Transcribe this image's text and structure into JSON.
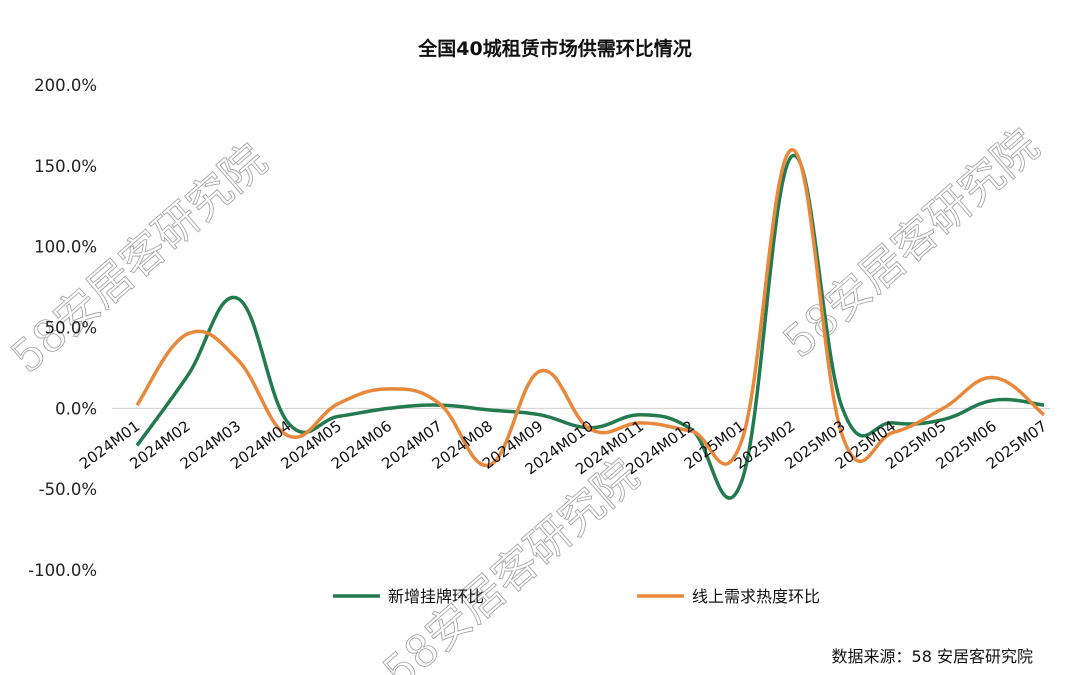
{
  "chart_data": {
    "type": "line",
    "title": "全国40城租赁市场供需环比情况",
    "categories": [
      "2024M01",
      "2024M02",
      "2024M03",
      "2024M04",
      "2024M05",
      "2024M06",
      "2024M07",
      "2024M08",
      "2024M09",
      "2024M010",
      "2024M011",
      "2024M012",
      "2025M01",
      "2025M02",
      "2025M03",
      "2025M04",
      "2025M05",
      "2025M06",
      "2025M07"
    ],
    "y_ticks": [
      "200.0%",
      "150.0%",
      "100.0%",
      "50.0%",
      "0.0%",
      "-50.0%",
      "-100.0%"
    ],
    "ylim": [
      -100,
      200
    ],
    "y_unit": "%",
    "grid": false,
    "legend_position": "bottom",
    "series": [
      {
        "name": "新增挂牌环比",
        "color": "#237a4f",
        "values": [
          -23,
          20,
          68,
          -9,
          -5,
          0,
          2,
          -1,
          -4,
          -12,
          -4,
          -13,
          -45,
          156,
          0,
          -9,
          -7,
          5,
          2
        ]
      },
      {
        "name": "线上需求热度环比",
        "color": "#e8883a",
        "values": [
          2,
          46,
          30,
          -17,
          3,
          12,
          3,
          -35,
          23,
          -13,
          -9,
          -14,
          -20,
          160,
          -17,
          -15,
          0,
          19,
          -4
        ]
      }
    ]
  },
  "source_text": "数据来源：58 安居客研究院",
  "watermark": "58安居客研究院",
  "colors": {
    "axis_zero": "#d0d0d0"
  }
}
